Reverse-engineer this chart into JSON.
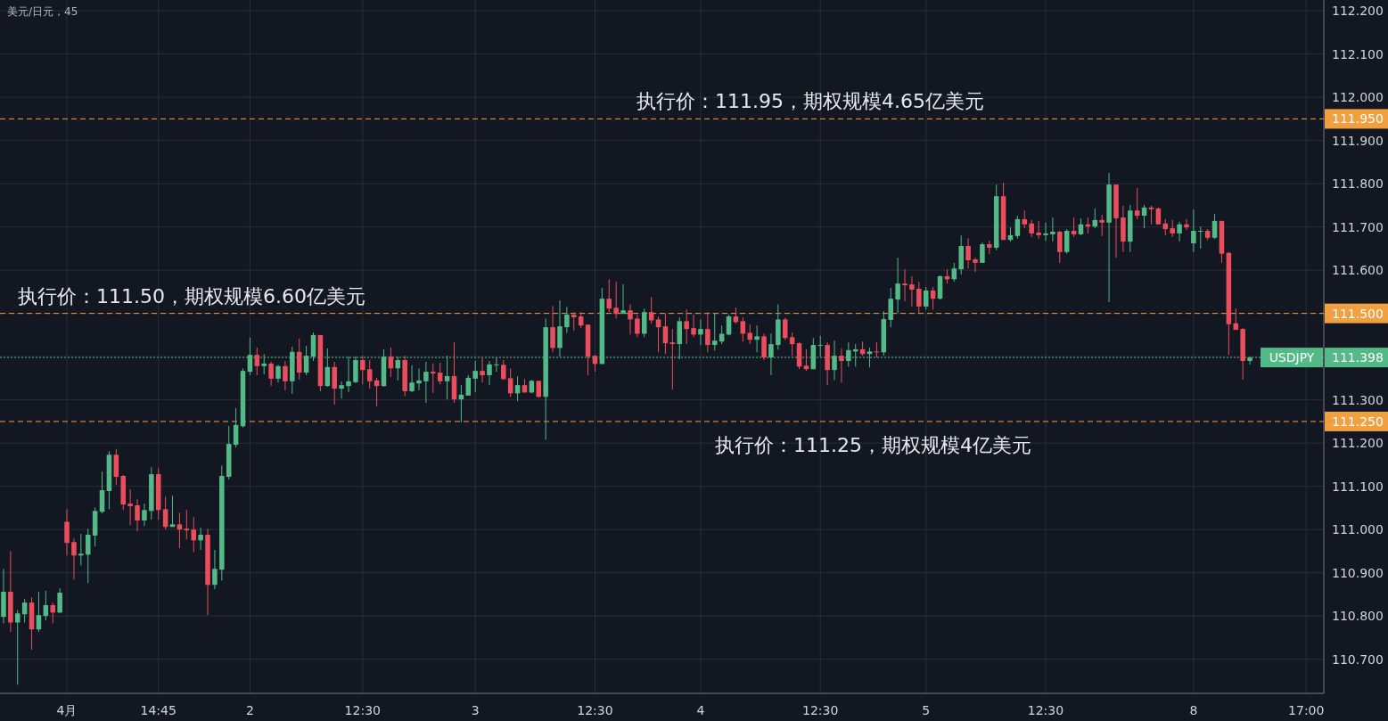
{
  "chart_data": {
    "type": "candlestick",
    "title": "美元/日元，45",
    "categories": [
      null,
      null,
      null,
      null,
      null,
      null,
      null,
      null,
      null,
      "4月",
      null,
      null,
      null,
      null,
      null,
      null,
      null,
      null,
      null,
      null,
      null,
      null,
      "14:45",
      null,
      null,
      null,
      null,
      null,
      null,
      null,
      null,
      null,
      null,
      null,
      null,
      "2",
      null,
      null,
      null,
      null,
      null,
      null,
      null,
      null,
      null,
      null,
      null,
      null,
      null,
      null,
      null,
      "12:30",
      null,
      null,
      null,
      null,
      null,
      null,
      null,
      null,
      null,
      null,
      null,
      null,
      null,
      null,
      null,
      "3",
      null,
      null,
      null,
      null,
      null,
      null,
      null,
      null,
      null,
      null,
      null,
      null,
      null,
      null,
      null,
      null,
      "12:30",
      null,
      null,
      null,
      null,
      null,
      null,
      null,
      null,
      null,
      null,
      null,
      null,
      null,
      null,
      "4",
      null,
      null,
      null,
      null,
      null,
      null,
      null,
      null,
      null,
      null,
      null,
      null,
      null,
      null,
      null,
      null,
      "12:30",
      null,
      null,
      null,
      null,
      null,
      null,
      null,
      null,
      null,
      null,
      null,
      null,
      null,
      null,
      "5",
      null,
      null,
      null,
      null,
      null,
      null,
      null,
      null,
      null,
      null,
      null,
      null,
      null,
      null,
      null,
      null,
      "12:30",
      null,
      null,
      null,
      null,
      null,
      null,
      null,
      null,
      null,
      null,
      null,
      null,
      null,
      null,
      null,
      null,
      null,
      null,
      null,
      null,
      "8",
      null,
      null,
      null,
      null,
      null,
      null,
      null,
      null,
      null,
      null,
      null,
      null,
      null,
      null,
      null,
      "17:00",
      null,
      null
    ],
    "ohlc": [
      [
        110.798,
        110.909,
        110.783,
        110.856
      ],
      [
        110.856,
        110.95,
        110.763,
        110.785
      ],
      [
        110.785,
        110.814,
        110.641,
        110.806
      ],
      [
        110.804,
        110.839,
        110.785,
        110.831
      ],
      [
        110.831,
        110.843,
        110.722,
        110.769
      ],
      [
        110.769,
        110.856,
        110.763,
        110.802
      ],
      [
        110.8,
        110.858,
        110.79,
        110.825
      ],
      [
        110.825,
        110.831,
        110.783,
        110.808
      ],
      [
        110.808,
        110.864,
        110.806,
        110.854
      ],
      [
        111.018,
        111.047,
        110.94,
        110.969
      ],
      [
        110.971,
        110.979,
        110.884,
        110.94
      ],
      [
        110.94,
        110.99,
        110.917,
        110.944
      ],
      [
        110.942,
        111.002,
        110.876,
        110.988
      ],
      [
        110.986,
        111.051,
        110.961,
        111.043
      ],
      [
        111.041,
        111.134,
        111.037,
        111.091
      ],
      [
        111.089,
        111.181,
        111.047,
        111.173
      ],
      [
        111.173,
        111.186,
        111.103,
        111.122
      ],
      [
        111.124,
        111.126,
        111.045,
        111.058
      ],
      [
        111.06,
        111.093,
        111.01,
        111.054
      ],
      [
        111.056,
        111.07,
        110.996,
        111.021
      ],
      [
        111.021,
        111.06,
        111.008,
        111.045
      ],
      [
        111.043,
        111.144,
        111.023,
        111.128
      ],
      [
        111.128,
        111.142,
        111.023,
        111.045
      ],
      [
        111.047,
        111.076,
        111.0,
        111.006
      ],
      [
        111.006,
        111.078,
        111.006,
        111.012
      ],
      [
        111.012,
        111.039,
        110.957,
        111.0
      ],
      [
        111.002,
        111.045,
        110.977,
        110.998
      ],
      [
        111.0,
        111.029,
        110.948,
        110.975
      ],
      [
        110.975,
        111.004,
        110.953,
        110.988
      ],
      [
        110.988,
        111.002,
        110.802,
        110.872
      ],
      [
        110.872,
        110.953,
        110.862,
        110.909
      ],
      [
        110.907,
        111.148,
        110.882,
        111.124
      ],
      [
        111.122,
        111.24,
        111.116,
        111.198
      ],
      [
        111.196,
        111.281,
        111.19,
        111.242
      ],
      [
        111.239,
        111.373,
        111.236,
        111.367
      ],
      [
        111.365,
        111.444,
        111.357,
        111.404
      ],
      [
        111.404,
        111.421,
        111.357,
        111.378
      ],
      [
        111.378,
        111.406,
        111.359,
        111.384
      ],
      [
        111.384,
        111.388,
        111.332,
        111.349
      ],
      [
        111.349,
        111.381,
        111.34,
        111.378
      ],
      [
        111.378,
        111.39,
        111.322,
        111.343
      ],
      [
        111.343,
        111.423,
        111.314,
        111.411
      ],
      [
        111.411,
        111.442,
        111.347,
        111.363
      ],
      [
        111.363,
        111.425,
        111.357,
        111.402
      ],
      [
        111.4,
        111.456,
        111.39,
        111.45
      ],
      [
        111.45,
        111.45,
        111.32,
        111.332
      ],
      [
        111.332,
        111.419,
        111.33,
        111.376
      ],
      [
        111.376,
        111.388,
        111.289,
        111.326
      ],
      [
        111.326,
        111.343,
        111.303,
        111.334
      ],
      [
        111.332,
        111.4,
        111.318,
        111.343
      ],
      [
        111.341,
        111.4,
        111.339,
        111.392
      ],
      [
        111.392,
        111.402,
        111.336,
        111.369
      ],
      [
        111.371,
        111.392,
        111.326,
        111.343
      ],
      [
        111.345,
        111.351,
        111.285,
        111.332
      ],
      [
        111.332,
        111.417,
        111.33,
        111.4
      ],
      [
        111.4,
        111.421,
        111.353,
        111.373
      ],
      [
        111.373,
        111.4,
        111.345,
        111.392
      ],
      [
        111.392,
        111.402,
        111.308,
        111.32
      ],
      [
        111.32,
        111.38,
        111.318,
        111.34
      ],
      [
        111.338,
        111.373,
        111.322,
        111.345
      ],
      [
        111.343,
        111.388,
        111.293,
        111.365
      ],
      [
        111.365,
        111.384,
        111.316,
        111.361
      ],
      [
        111.363,
        111.386,
        111.336,
        111.343
      ],
      [
        111.343,
        111.402,
        111.301,
        111.355
      ],
      [
        111.355,
        111.433,
        111.293,
        111.301
      ],
      [
        111.301,
        111.334,
        111.248,
        111.312
      ],
      [
        111.31,
        111.357,
        111.31,
        111.351
      ],
      [
        111.349,
        111.39,
        111.318,
        111.367
      ],
      [
        111.367,
        111.398,
        111.34,
        111.357
      ],
      [
        111.357,
        111.39,
        111.334,
        111.382
      ],
      [
        111.381,
        111.398,
        111.365,
        111.382
      ],
      [
        111.381,
        111.392,
        111.346,
        111.348
      ],
      [
        111.35,
        111.373,
        111.307,
        111.315
      ],
      [
        111.315,
        111.354,
        111.297,
        111.334
      ],
      [
        111.334,
        111.348,
        111.317,
        111.317
      ],
      [
        111.317,
        111.346,
        111.315,
        111.344
      ],
      [
        111.344,
        111.344,
        111.305,
        111.307
      ],
      [
        111.307,
        111.488,
        111.208,
        111.468
      ],
      [
        111.468,
        111.517,
        111.41,
        111.42
      ],
      [
        111.42,
        111.53,
        111.4,
        111.47
      ],
      [
        111.468,
        111.515,
        111.455,
        111.497
      ],
      [
        111.497,
        111.503,
        111.46,
        111.491
      ],
      [
        111.493,
        111.503,
        111.466,
        111.472
      ],
      [
        111.474,
        111.474,
        111.357,
        111.4
      ],
      [
        111.402,
        111.404,
        111.365,
        111.383
      ],
      [
        111.383,
        111.559,
        111.383,
        111.534
      ],
      [
        111.534,
        111.579,
        111.503,
        111.511
      ],
      [
        111.513,
        111.573,
        111.488,
        111.499
      ],
      [
        111.499,
        111.567,
        111.499,
        111.507
      ],
      [
        111.507,
        111.521,
        111.451,
        111.486
      ],
      [
        111.488,
        111.497,
        111.445,
        111.453
      ],
      [
        111.453,
        111.511,
        111.445,
        111.503
      ],
      [
        111.503,
        111.538,
        111.476,
        111.484
      ],
      [
        111.486,
        111.493,
        111.41,
        111.468
      ],
      [
        111.47,
        111.499,
        111.406,
        111.431
      ],
      [
        111.433,
        111.464,
        111.324,
        111.429
      ],
      [
        111.429,
        111.491,
        111.394,
        111.482
      ],
      [
        111.482,
        111.509,
        111.429,
        111.464
      ],
      [
        111.466,
        111.497,
        111.445,
        111.451
      ],
      [
        111.451,
        111.486,
        111.427,
        111.464
      ],
      [
        111.464,
        111.503,
        111.41,
        111.427
      ],
      [
        111.427,
        111.501,
        111.414,
        111.437
      ],
      [
        111.435,
        111.472,
        111.429,
        111.453
      ],
      [
        111.451,
        111.497,
        111.449,
        111.493
      ],
      [
        111.493,
        111.513,
        111.476,
        111.48
      ],
      [
        111.482,
        111.491,
        111.435,
        111.453
      ],
      [
        111.455,
        111.474,
        111.429,
        111.439
      ],
      [
        111.439,
        111.472,
        111.41,
        111.447
      ],
      [
        111.447,
        111.453,
        111.392,
        111.398
      ],
      [
        111.398,
        111.453,
        111.357,
        111.429
      ],
      [
        111.427,
        111.521,
        111.416,
        111.486
      ],
      [
        111.486,
        111.49,
        111.438,
        111.443
      ],
      [
        111.445,
        111.456,
        111.402,
        111.429
      ],
      [
        111.431,
        111.433,
        111.371,
        111.377
      ],
      [
        111.379,
        111.417,
        111.367,
        111.371
      ],
      [
        111.371,
        111.443,
        111.371,
        111.427
      ],
      [
        111.425,
        111.448,
        111.4,
        111.427
      ],
      [
        111.427,
        111.433,
        111.334,
        111.369
      ],
      [
        111.369,
        111.437,
        111.346,
        111.402
      ],
      [
        111.402,
        111.419,
        111.34,
        111.39
      ],
      [
        111.39,
        111.433,
        111.377,
        111.415
      ],
      [
        111.412,
        111.429,
        111.377,
        111.417
      ],
      [
        111.417,
        111.435,
        111.402,
        111.406
      ],
      [
        111.406,
        111.421,
        111.375,
        111.412
      ],
      [
        111.412,
        111.433,
        111.398,
        111.41
      ],
      [
        111.41,
        111.505,
        111.402,
        111.487
      ],
      [
        111.485,
        111.559,
        111.468,
        111.534
      ],
      [
        111.532,
        111.629,
        111.501,
        111.569
      ],
      [
        111.569,
        111.602,
        111.528,
        111.565
      ],
      [
        111.567,
        111.586,
        111.516,
        111.555
      ],
      [
        111.557,
        111.573,
        111.501,
        111.516
      ],
      [
        111.516,
        111.561,
        111.509,
        111.553
      ],
      [
        111.553,
        111.561,
        111.509,
        111.534
      ],
      [
        111.534,
        111.588,
        111.532,
        111.586
      ],
      [
        111.586,
        111.602,
        111.569,
        111.579
      ],
      [
        111.579,
        111.617,
        111.573,
        111.604
      ],
      [
        111.602,
        111.68,
        111.59,
        111.656
      ],
      [
        111.656,
        111.674,
        111.604,
        111.623
      ],
      [
        111.625,
        111.629,
        111.596,
        111.617
      ],
      [
        111.617,
        111.664,
        111.617,
        111.66
      ],
      [
        111.66,
        111.668,
        111.637,
        111.652
      ],
      [
        111.652,
        111.798,
        111.646,
        111.771
      ],
      [
        111.771,
        111.802,
        111.67,
        111.67
      ],
      [
        111.67,
        111.699,
        111.666,
        111.681
      ],
      [
        111.679,
        111.726,
        111.673,
        111.718
      ],
      [
        111.718,
        111.738,
        111.697,
        111.706
      ],
      [
        111.708,
        111.716,
        111.677,
        111.685
      ],
      [
        111.687,
        111.714,
        111.673,
        111.681
      ],
      [
        111.681,
        111.71,
        111.668,
        111.685
      ],
      [
        111.683,
        111.722,
        111.666,
        111.689
      ],
      [
        111.689,
        111.691,
        111.617,
        111.642
      ],
      [
        111.642,
        111.695,
        111.638,
        111.691
      ],
      [
        111.691,
        111.722,
        111.677,
        111.683
      ],
      [
        111.683,
        111.72,
        111.681,
        111.706
      ],
      [
        111.706,
        111.722,
        111.685,
        111.701
      ],
      [
        111.701,
        111.743,
        111.697,
        111.716
      ],
      [
        111.716,
        111.728,
        111.679,
        111.71
      ],
      [
        111.71,
        111.825,
        111.526,
        111.798
      ],
      [
        111.798,
        111.798,
        111.629,
        111.72
      ],
      [
        111.722,
        111.749,
        111.642,
        111.666
      ],
      [
        111.666,
        111.751,
        111.642,
        111.738
      ],
      [
        111.738,
        111.79,
        111.718,
        111.726
      ],
      [
        111.726,
        111.751,
        111.697,
        111.745
      ],
      [
        111.745,
        111.749,
        111.706,
        111.741
      ],
      [
        111.743,
        111.745,
        111.706,
        111.706
      ],
      [
        111.708,
        111.718,
        111.681,
        111.695
      ],
      [
        111.697,
        111.716,
        111.677,
        111.685
      ],
      [
        111.685,
        111.712,
        111.666,
        111.706
      ],
      [
        111.706,
        111.718,
        111.693,
        111.699
      ],
      [
        111.662,
        111.74,
        111.642,
        111.691
      ],
      [
        111.69,
        111.701,
        111.65,
        111.691
      ],
      [
        111.691,
        111.695,
        111.67,
        111.675
      ],
      [
        111.675,
        111.73,
        111.672,
        111.714
      ],
      [
        111.714,
        111.714,
        111.617,
        111.638
      ],
      [
        111.64,
        111.642,
        111.404,
        111.475
      ],
      [
        111.477,
        111.512,
        111.462,
        111.462
      ],
      [
        111.464,
        111.466,
        111.347,
        111.39
      ],
      [
        111.39,
        111.4,
        111.382,
        111.398
      ],
      null,
      null,
      null,
      null,
      null,
      null,
      null,
      null,
      null,
      null
    ],
    "colors": [
      "#53b987",
      "#eb4d5c",
      "#53b987",
      "#53b987",
      "#eb4d5c",
      "#53b987",
      "#53b987",
      "#eb4d5c",
      "#53b987",
      "#eb4d5c",
      "#eb4d5c",
      "#53b987",
      "#53b987",
      "#53b987",
      "#53b987",
      "#53b987",
      "#eb4d5c",
      "#eb4d5c",
      "#eb4d5c",
      "#eb4d5c",
      "#53b987",
      "#53b987",
      "#eb4d5c",
      "#eb4d5c",
      "#53b987",
      "#eb4d5c",
      "#eb4d5c",
      "#eb4d5c",
      "#53b987",
      "#eb4d5c",
      "#53b987",
      "#53b987",
      "#53b987",
      "#53b987",
      "#53b987",
      "#53b987",
      "#eb4d5c",
      "#53b987",
      "#eb4d5c",
      "#53b987",
      "#eb4d5c",
      "#53b987",
      "#eb4d5c",
      "#53b987",
      "#53b987",
      "#eb4d5c",
      "#53b987",
      "#eb4d5c",
      "#53b987",
      "#53b987",
      "#53b987",
      "#eb4d5c",
      "#eb4d5c",
      "#eb4d5c",
      "#53b987",
      "#eb4d5c",
      "#53b987",
      "#eb4d5c",
      "#53b987",
      "#53b987",
      "#53b987",
      "#eb4d5c",
      "#eb4d5c",
      "#53b987",
      "#eb4d5c",
      "#53b987",
      "#53b987",
      "#53b987",
      "#eb4d5c",
      "#53b987",
      "#53b987",
      "#eb4d5c",
      "#eb4d5c",
      "#53b987",
      "#eb4d5c",
      "#53b987",
      "#eb4d5c",
      "#53b987",
      "#eb4d5c",
      "#53b987",
      "#53b987",
      "#eb4d5c",
      "#eb4d5c",
      "#eb4d5c",
      "#eb4d5c",
      "#53b987",
      "#eb4d5c",
      "#eb4d5c",
      "#53b987",
      "#eb4d5c",
      "#eb4d5c",
      "#53b987",
      "#eb4d5c",
      "#eb4d5c",
      "#eb4d5c",
      "#eb4d5c",
      "#53b987",
      "#eb4d5c",
      "#eb4d5c",
      "#53b987",
      "#eb4d5c",
      "#53b987",
      "#53b987",
      "#53b987",
      "#eb4d5c",
      "#eb4d5c",
      "#eb4d5c",
      "#53b987",
      "#eb4d5c",
      "#53b987",
      "#53b987",
      "#eb4d5c",
      "#eb4d5c",
      "#eb4d5c",
      "#eb4d5c",
      "#53b987",
      "#53b987",
      "#eb4d5c",
      "#53b987",
      "#eb4d5c",
      "#53b987",
      "#53b987",
      "#eb4d5c",
      "#53b987",
      "#eb4d5c",
      "#53b987",
      "#53b987",
      "#53b987",
      "#eb4d5c",
      "#eb4d5c",
      "#eb4d5c",
      "#53b987",
      "#eb4d5c",
      "#53b987",
      "#eb4d5c",
      "#53b987",
      "#53b987",
      "#eb4d5c",
      "#eb4d5c",
      "#53b987",
      "#eb4d5c",
      "#53b987",
      "#eb4d5c",
      "#53b987",
      "#53b987",
      "#eb4d5c",
      "#eb4d5c",
      "#eb4d5c",
      "#53b987",
      "#53b987",
      "#eb4d5c",
      "#53b987",
      "#eb4d5c",
      "#53b987",
      "#eb4d5c",
      "#53b987",
      "#eb4d5c",
      "#53b987",
      "#eb4d5c",
      "#eb4d5c",
      "#53b987",
      "#eb4d5c",
      "#53b987",
      "#eb4d5c",
      "#eb4d5c",
      "#eb4d5c",
      "#eb4d5c",
      "#53b987",
      "#eb4d5c",
      "#53b987",
      "#53b987",
      "#eb4d5c",
      "#53b987",
      "#eb4d5c",
      "#eb4d5c",
      "#eb4d5c",
      "#eb4d5c",
      "#53b987",
      null,
      null,
      null,
      null,
      null,
      null,
      null,
      null,
      null,
      null
    ],
    "ylim": [
      110.621,
      112.225
    ],
    "yticks": [
      {
        "value": 110.7,
        "label": "110.700"
      },
      {
        "value": 110.8,
        "label": "110.800"
      },
      {
        "value": 110.9,
        "label": "110.900"
      },
      {
        "value": 111.0,
        "label": "111.000"
      },
      {
        "value": 111.1,
        "label": "111.100"
      },
      {
        "value": 111.2,
        "label": "111.200"
      },
      {
        "value": 111.3,
        "label": "111.300"
      },
      {
        "value": 111.4,
        "label": null
      },
      {
        "value": 111.5,
        "label": null
      },
      {
        "value": 111.6,
        "label": "111.600"
      },
      {
        "value": 111.7,
        "label": "111.700"
      },
      {
        "value": 111.8,
        "label": "111.800"
      },
      {
        "value": 111.9,
        "label": "111.900"
      },
      {
        "value": 112.0,
        "label": "112.000"
      },
      {
        "value": 112.1,
        "label": "112.100"
      },
      {
        "value": 112.2,
        "label": "112.200"
      }
    ],
    "grid": true,
    "ref_lines": [
      {
        "axis": "y",
        "value": 111.95,
        "label": "111.950",
        "color": "#f0a040",
        "line_style": "dashed"
      },
      {
        "axis": "y",
        "value": 111.5,
        "label": "111.500",
        "color": "#f0a040",
        "line_style": "dashed"
      },
      {
        "axis": "y",
        "value": 111.25,
        "label": "111.250",
        "color": "#f0a040",
        "line_style": "dashed"
      },
      {
        "axis": "y",
        "value": 111.398,
        "label": "111.398",
        "color": "#53b987",
        "line_style": "dotted"
      }
    ],
    "annotations": [
      {
        "text": "执行价：111.95，期权规模4.65亿美元",
        "y": 111.95
      },
      {
        "text": "执行价：111.50，期权规模6.60亿美元",
        "y": 111.5
      },
      {
        "text": "执行价：111.25，期权规模4亿美元",
        "y": 111.25
      },
      "USDJPY"
    ]
  }
}
